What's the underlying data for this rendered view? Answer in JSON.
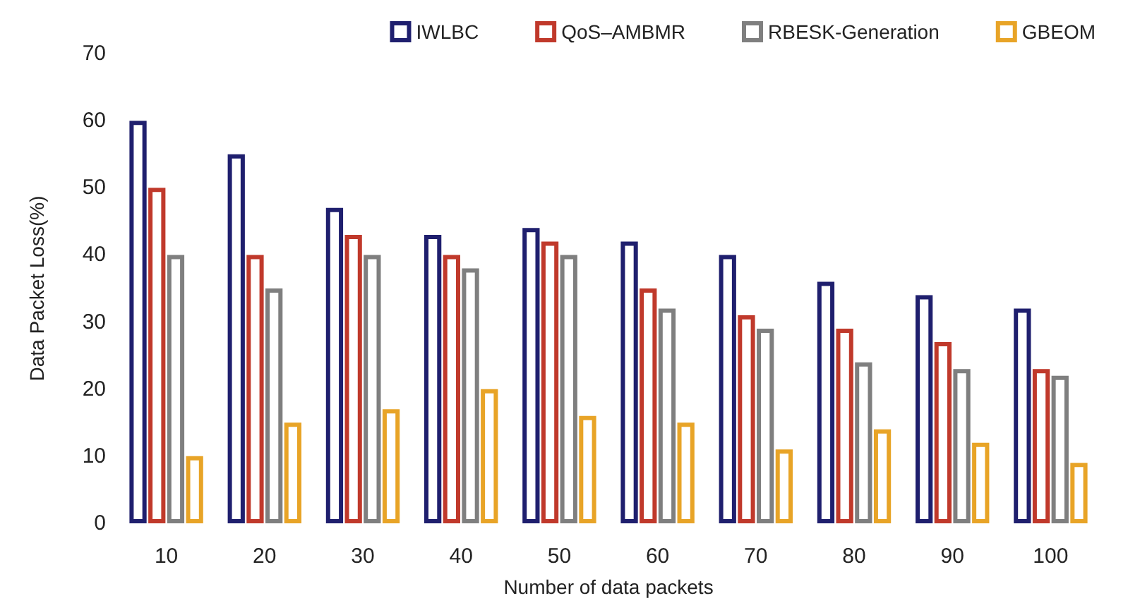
{
  "chart_data": {
    "type": "bar",
    "xlabel": "Number of data packets",
    "ylabel": "Data Packet Loss(%)",
    "categories": [
      "10",
      "20",
      "30",
      "40",
      "50",
      "60",
      "70",
      "80",
      "90",
      "100"
    ],
    "series": [
      {
        "name": "IWLBC",
        "color": "#1f1f6e",
        "values": [
          60,
          55,
          47,
          43,
          44,
          42,
          40,
          36,
          34,
          32
        ]
      },
      {
        "name": "QoS–AMBMR",
        "color": "#c0392b",
        "values": [
          50,
          40,
          43,
          40,
          42,
          35,
          31,
          29,
          27,
          23
        ]
      },
      {
        "name": "RBESK-Generation",
        "color": "#7f7f7f",
        "values": [
          40,
          35,
          40,
          38,
          40,
          32,
          29,
          24,
          23,
          22
        ]
      },
      {
        "name": "GBEOM",
        "color": "#e8a427",
        "values": [
          10,
          15,
          17,
          20,
          16,
          15,
          11,
          14,
          12,
          9
        ]
      }
    ],
    "ylim": [
      0,
      70
    ],
    "yticks": [
      0,
      10,
      20,
      30,
      40,
      50,
      60,
      70
    ],
    "grid": false,
    "legend": "top right"
  }
}
